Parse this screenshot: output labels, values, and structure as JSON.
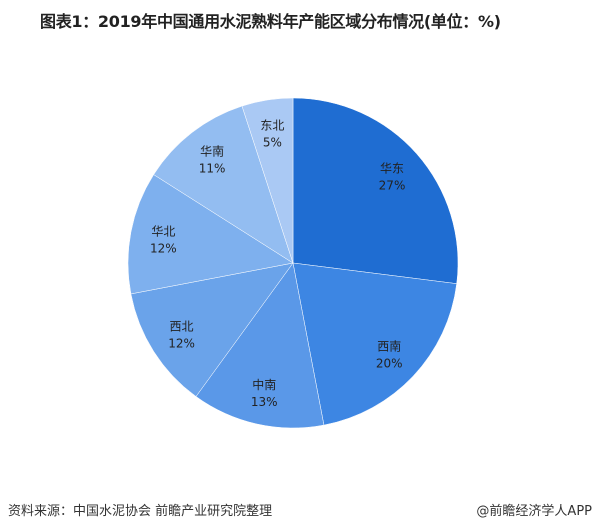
{
  "title": "图表1：2019年中国通用水泥熟料年产能区域分布情况(单位：%)",
  "source": "资料来源：中国水泥协会 前瞻产业研究院整理",
  "credit": "@前瞻经济学人APP",
  "chart_data": {
    "type": "pie",
    "title": "图表1：2019年中国通用水泥熟料年产能区域分布情况(单位：%)",
    "unit": "%",
    "start": "top, clockwise",
    "categories": [
      "华东",
      "西南",
      "中南",
      "西北",
      "华北",
      "华南",
      "东北"
    ],
    "values": [
      27,
      20,
      13,
      12,
      12,
      11,
      5
    ],
    "labels": [
      "27%",
      "20%",
      "13%",
      "12%",
      "12%",
      "11%",
      "5%"
    ],
    "colors": [
      "#1f6dd2",
      "#3d86e3",
      "#5a98e8",
      "#6aa3ea",
      "#7eb0ee",
      "#93bdf1",
      "#aac9f4"
    ]
  }
}
